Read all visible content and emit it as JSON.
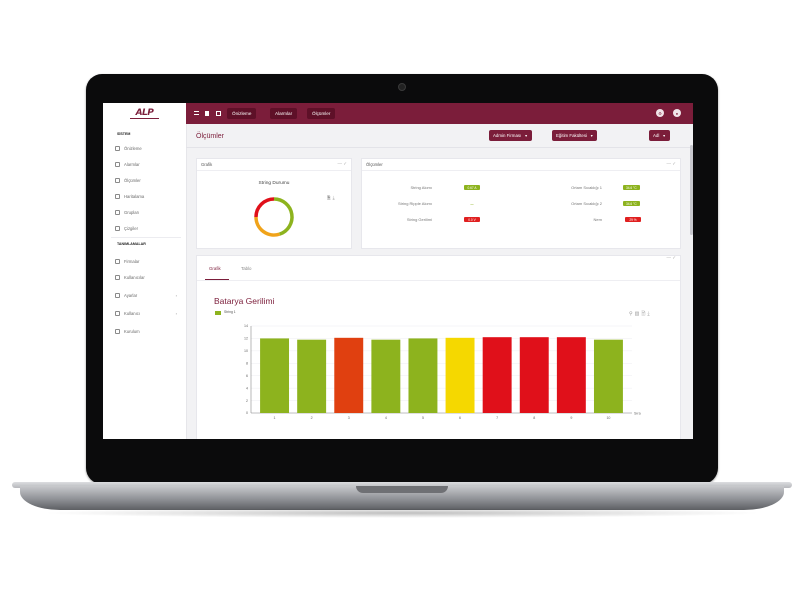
{
  "app": {
    "logo_text": "ALP",
    "accent_color": "#7b1d3a"
  },
  "sidebar": {
    "section_system": "SİSTEM",
    "section_definitions": "TANIMLAMALAR",
    "items": [
      {
        "label": "Önizleme",
        "icon": "eye-icon"
      },
      {
        "label": "Alarmlar",
        "icon": "alarm-icon"
      },
      {
        "label": "Ölçümler",
        "icon": "chart-icon"
      },
      {
        "label": "Haritalama",
        "icon": "map-icon"
      },
      {
        "label": "Grupları",
        "icon": "group-icon"
      },
      {
        "label": "Çizgiler",
        "icon": "line-icon"
      }
    ],
    "def_items": [
      {
        "label": "Firmalar",
        "icon": "building-icon"
      },
      {
        "label": "Kullanıcılar",
        "icon": "user-icon"
      },
      {
        "label": "Ayarlar",
        "icon": "gear-icon"
      },
      {
        "label": "Kullanıcı",
        "icon": "card-icon"
      },
      {
        "label": "Kurulum",
        "icon": "wrench-icon"
      }
    ]
  },
  "topbar": {
    "tabs": [
      "Önizleme",
      "Alarmlar",
      "Ölçümler"
    ]
  },
  "header": {
    "title": "Ölçümler",
    "filters": [
      "Admin Firması",
      "Eğitim Fakültesi",
      "Adl"
    ]
  },
  "grafik_card": {
    "title": "Grafik",
    "donut_title": "String Durumu"
  },
  "measurements": {
    "title": "Ölçümler",
    "left": [
      {
        "label": "String Akımı",
        "value": "0.67 A",
        "color": "#8db31e"
      },
      {
        "label": "String Ripple Akımı",
        "value": "—",
        "color": "#8db31e"
      },
      {
        "label": "String Gerilimi",
        "value": "0.0 V",
        "color": "#e02020"
      }
    ],
    "right": [
      {
        "label": "Ortam Sıcaklığı 1",
        "value": "34.6 °C",
        "color": "#8db31e"
      },
      {
        "label": "Ortam Sıcaklığı 2",
        "value": "34.6 °C",
        "color": "#8db31e"
      },
      {
        "label": "Nem",
        "value": "29 %",
        "color": "#e02020"
      }
    ]
  },
  "tabs": {
    "active": "Grafik",
    "other": "Tablo"
  },
  "chart_data": {
    "type": "bar",
    "title": "Batarya Gerilimi",
    "xlabel": "Sıra",
    "ylabel": "",
    "legend": "String 1",
    "categories": [
      "1",
      "2",
      "3",
      "4",
      "5",
      "6",
      "7",
      "8",
      "9",
      "10"
    ],
    "values": [
      12.0,
      11.8,
      12.1,
      11.8,
      12.0,
      12.1,
      12.2,
      12.2,
      12.2,
      11.8
    ],
    "colors": [
      "#8db31e",
      "#8db31e",
      "#e04010",
      "#8db31e",
      "#8db31e",
      "#f5d800",
      "#e0101a",
      "#e0101a",
      "#e0101a",
      "#8db31e"
    ],
    "ylim": [
      0,
      14
    ],
    "yticks": [
      0,
      2,
      4,
      6,
      8,
      10,
      12,
      14
    ]
  },
  "donut": {
    "segments": [
      {
        "value": 45,
        "color": "#8db31e"
      },
      {
        "value": 30,
        "color": "#f0a31a"
      },
      {
        "value": 25,
        "color": "#e0101a"
      }
    ]
  }
}
